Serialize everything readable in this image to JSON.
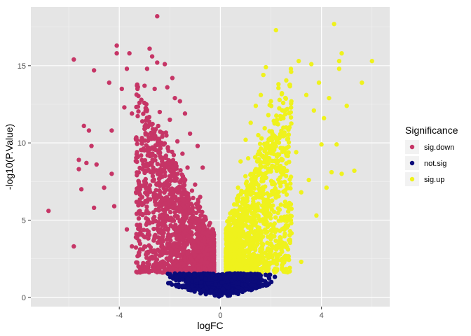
{
  "chart_data": {
    "type": "scatter",
    "title": "",
    "xlabel": "logFC",
    "ylabel": "-log10(P.Value)",
    "xlim": [
      -7.5,
      6.7
    ],
    "ylim": [
      -0.6,
      18.8
    ],
    "x_ticks": [
      -4,
      0,
      4
    ],
    "x_minor_ticks": [
      -6,
      -2,
      2,
      6
    ],
    "y_ticks": [
      0,
      5,
      10,
      15
    ],
    "y_minor_ticks": [
      2.5,
      7.5,
      12.5,
      17.5
    ],
    "x_tick_labels": [
      "-4",
      "0",
      "4"
    ],
    "y_tick_labels": [
      "0",
      "5",
      "10",
      "15"
    ],
    "grid": true,
    "panel_background": "#e5e5e5",
    "legend": {
      "title": "Significance",
      "position": "right",
      "entries": [
        {
          "label": "sig.down",
          "color": "#c63566"
        },
        {
          "label": "not.sig",
          "color": "#0b0b7a"
        },
        {
          "label": "sig.up",
          "color": "#eff21c"
        }
      ]
    },
    "series": [
      {
        "name": "sig.down",
        "color": "#c63566",
        "points": [
          [
            -6.8,
            5.6
          ],
          [
            -5.8,
            15.4
          ],
          [
            -5.8,
            3.3
          ],
          [
            -5.6,
            8.9
          ],
          [
            -5.6,
            8.3
          ],
          [
            -5.5,
            7.0
          ],
          [
            -5.4,
            11.1
          ],
          [
            -5.3,
            8.7
          ],
          [
            -5.2,
            10.8
          ],
          [
            -5.1,
            9.8
          ],
          [
            -5.0,
            14.7
          ],
          [
            -5.0,
            5.8
          ],
          [
            -4.9,
            8.6
          ],
          [
            -4.6,
            7.1
          ],
          [
            -4.4,
            13.9
          ],
          [
            -4.3,
            10.8
          ],
          [
            -4.3,
            8.0
          ],
          [
            -4.2,
            5.9
          ],
          [
            -4.1,
            16.3
          ],
          [
            -4.1,
            15.8
          ],
          [
            -3.9,
            13.5
          ],
          [
            -3.8,
            12.3
          ],
          [
            -3.7,
            14.8
          ],
          [
            -3.7,
            4.4
          ],
          [
            -3.6,
            15.8
          ],
          [
            -3.5,
            11.9
          ],
          [
            -3.5,
            3.3
          ],
          [
            -3.3,
            13.7
          ],
          [
            -3.3,
            9.4
          ],
          [
            -3.2,
            12.6
          ],
          [
            -3.1,
            6.1
          ],
          [
            -3.0,
            13.7
          ],
          [
            -2.9,
            14.8
          ],
          [
            -2.8,
            16.1
          ],
          [
            -2.8,
            11.2
          ],
          [
            -2.8,
            4.8
          ],
          [
            -2.7,
            15.6
          ],
          [
            -2.6,
            13.5
          ],
          [
            -2.5,
            18.2
          ],
          [
            -2.5,
            15.2
          ],
          [
            -2.4,
            12.0
          ],
          [
            -2.3,
            10.4
          ],
          [
            -2.2,
            15.1
          ],
          [
            -2.1,
            13.6
          ],
          [
            -2.0,
            11.5
          ],
          [
            -1.9,
            14.2
          ],
          [
            -1.8,
            12.9
          ],
          [
            -1.7,
            10.1
          ],
          [
            -1.6,
            12.7
          ],
          [
            -1.5,
            9.3
          ],
          [
            -1.4,
            11.9
          ],
          [
            -1.3,
            8.4
          ],
          [
            -1.2,
            10.6
          ],
          [
            -1.0,
            7.3
          ],
          [
            -0.9,
            9.8
          ],
          [
            -0.8,
            6.5
          ],
          [
            -0.7,
            8.4
          ],
          [
            -0.6,
            5.2
          ],
          [
            -0.5,
            4.0
          ],
          [
            -0.4,
            3.1
          ]
        ]
      },
      {
        "name": "not.sig",
        "color": "#0b0b7a",
        "points": []
      },
      {
        "name": "sig.up",
        "color": "#eff21c",
        "points": [
          [
            0.4,
            3.2
          ],
          [
            0.5,
            4.3
          ],
          [
            0.6,
            5.6
          ],
          [
            0.7,
            7.1
          ],
          [
            0.8,
            8.8
          ],
          [
            0.9,
            6.4
          ],
          [
            1.0,
            10.2
          ],
          [
            1.1,
            9.0
          ],
          [
            1.2,
            11.3
          ],
          [
            1.3,
            7.9
          ],
          [
            1.4,
            12.4
          ],
          [
            1.5,
            10.5
          ],
          [
            1.6,
            13.1
          ],
          [
            1.7,
            14.4
          ],
          [
            1.8,
            14.9
          ],
          [
            1.9,
            11.8
          ],
          [
            2.0,
            12.7
          ],
          [
            2.1,
            9.6
          ],
          [
            2.2,
            17.3
          ],
          [
            2.3,
            13.8
          ],
          [
            2.4,
            8.1
          ],
          [
            2.6,
            11.0
          ],
          [
            2.8,
            14.6
          ],
          [
            3.0,
            9.4
          ],
          [
            3.1,
            15.3
          ],
          [
            3.2,
            6.8
          ],
          [
            3.2,
            2.3
          ],
          [
            3.4,
            13.1
          ],
          [
            3.5,
            7.6
          ],
          [
            3.6,
            15.1
          ],
          [
            3.7,
            12.1
          ],
          [
            3.8,
            5.3
          ],
          [
            3.9,
            13.9
          ],
          [
            4.0,
            9.9
          ],
          [
            4.1,
            11.6
          ],
          [
            4.2,
            7.1
          ],
          [
            4.3,
            12.9
          ],
          [
            4.4,
            8.1
          ],
          [
            4.5,
            17.7
          ],
          [
            4.6,
            9.9
          ],
          [
            4.7,
            15.3
          ],
          [
            4.7,
            14.8
          ],
          [
            4.8,
            15.8
          ],
          [
            4.8,
            8.0
          ],
          [
            5.0,
            12.4
          ],
          [
            5.3,
            8.2
          ],
          [
            5.6,
            13.9
          ],
          [
            6.0,
            15.3
          ]
        ]
      }
    ]
  }
}
